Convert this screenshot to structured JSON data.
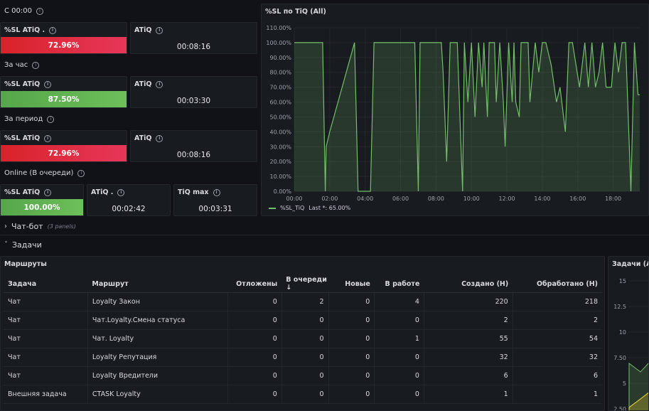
{
  "rows": {
    "since_midnight": "С 00:00",
    "per_hour": "За час",
    "per_period": "За период",
    "online": "Online (В очереди)"
  },
  "stat1": {
    "title": "%SL ATiQ .",
    "value": "72.96%",
    "atiq_title": "ATiQ",
    "atiq_value": "00:08:16"
  },
  "stat2": {
    "title": "%SL ATiQ",
    "value": "87.50%",
    "atiq_title": "ATiQ",
    "atiq_value": "00:03:30"
  },
  "stat3": {
    "title": "%SL ATiQ",
    "value": "72.96%",
    "atiq_title": "ATiQ",
    "atiq_value": "00:08:16"
  },
  "stat4": {
    "title": "%SL ATiQ",
    "value": "100.00%",
    "atiq_title": "ATiQ .",
    "atiq_value": "00:02:42",
    "tiqmax_title": "TiQ max",
    "tiqmax_value": "00:03:31"
  },
  "collapsed_row": {
    "title": "Чат-бот",
    "meta": "(3 panels)"
  },
  "tasks_row": {
    "title": "Задачи"
  },
  "chart_panel": {
    "title": "%SL по TiQ (All)",
    "legend": "%SL_TiQ",
    "legend_last": "Last *: 65.00%"
  },
  "chart_data": {
    "type": "area",
    "title": "%SL по TiQ (All)",
    "y_ticks": [
      "110.00%",
      "100.00%",
      "90.00%",
      "80.00%",
      "70.00%",
      "60.00%",
      "50.00%",
      "40.00%",
      "30.00%",
      "20.00%",
      "10.00%",
      "0.00%"
    ],
    "x_ticks": [
      "00:00",
      "02:00",
      "04:00",
      "06:00",
      "08:00",
      "10:00",
      "12:00",
      "14:00",
      "16:00",
      "18:00"
    ],
    "ylim": [
      0,
      110
    ],
    "xlim": [
      0,
      19.5
    ],
    "color": "#73bf69",
    "series": [
      {
        "name": "%SL_TiQ",
        "points": [
          [
            0,
            100
          ],
          [
            1.6,
            100
          ],
          [
            1.75,
            0
          ],
          [
            1.8,
            30
          ],
          [
            2.0,
            40
          ],
          [
            3.4,
            100
          ],
          [
            3.6,
            0
          ],
          [
            4.3,
            0
          ],
          [
            4.5,
            100
          ],
          [
            6.8,
            100
          ],
          [
            7.0,
            0
          ],
          [
            7.1,
            100
          ],
          [
            8.3,
            100
          ],
          [
            8.4,
            80
          ],
          [
            8.6,
            20
          ],
          [
            8.8,
            100
          ],
          [
            9.2,
            100
          ],
          [
            9.5,
            0
          ],
          [
            9.6,
            100
          ],
          [
            9.8,
            60
          ],
          [
            10.0,
            100
          ],
          [
            10.2,
            50
          ],
          [
            10.4,
            100
          ],
          [
            10.6,
            70
          ],
          [
            10.7,
            100
          ],
          [
            10.9,
            50
          ],
          [
            11.0,
            100
          ],
          [
            11.3,
            100
          ],
          [
            11.4,
            60
          ],
          [
            11.6,
            100
          ],
          [
            11.8,
            60
          ],
          [
            11.9,
            30
          ],
          [
            12.1,
            100
          ],
          [
            12.3,
            60
          ],
          [
            12.4,
            100
          ],
          [
            12.5,
            60
          ],
          [
            12.7,
            50
          ],
          [
            12.8,
            100
          ],
          [
            12.9,
            100
          ],
          [
            13.2,
            100
          ],
          [
            13.3,
            60
          ],
          [
            13.6,
            100
          ],
          [
            13.8,
            80
          ],
          [
            14.0,
            100
          ],
          [
            14.2,
            100
          ],
          [
            14.5,
            85
          ],
          [
            14.8,
            60
          ],
          [
            15.0,
            70
          ],
          [
            15.3,
            40
          ],
          [
            15.5,
            100
          ],
          [
            15.7,
            100
          ],
          [
            15.9,
            85
          ],
          [
            16.1,
            70
          ],
          [
            16.4,
            100
          ],
          [
            16.6,
            70
          ],
          [
            16.8,
            100
          ],
          [
            17.0,
            70
          ],
          [
            17.2,
            80
          ],
          [
            17.4,
            100
          ],
          [
            17.6,
            70
          ],
          [
            17.9,
            70
          ],
          [
            18.1,
            100
          ],
          [
            18.3,
            80
          ],
          [
            18.5,
            100
          ],
          [
            18.7,
            100
          ],
          [
            19.0,
            0
          ],
          [
            19.2,
            100
          ],
          [
            19.4,
            65
          ],
          [
            19.5,
            65
          ]
        ]
      }
    ]
  },
  "table_panel": {
    "title": "Маршруты"
  },
  "table": {
    "headers": [
      "Задача",
      "Маршрут",
      "Отложены",
      "В очереди",
      "Новые",
      "В работе",
      "Создано (Н)",
      "Обработано (Н)"
    ],
    "sort_indicator": "↓",
    "rows": [
      [
        "Чат",
        "Loyalty Закон",
        "0",
        "2",
        "0",
        "4",
        "220",
        "218"
      ],
      [
        "Чат",
        "Чат.Loyalty.Смена статуса",
        "0",
        "0",
        "0",
        "0",
        "2",
        "2"
      ],
      [
        "Чат",
        "Чат. Loyalty",
        "0",
        "0",
        "0",
        "1",
        "55",
        "54"
      ],
      [
        "Чат",
        "Loyalty Репутация",
        "0",
        "0",
        "0",
        "0",
        "32",
        "32"
      ],
      [
        "Чат",
        "Loyalty Вредители",
        "0",
        "0",
        "0",
        "0",
        "6",
        "6"
      ],
      [
        "Внешняя задача",
        "CTASK Loyalty",
        "0",
        "0",
        "0",
        "0",
        "1",
        "1"
      ]
    ]
  },
  "right_panel": {
    "title": "Задачи (All",
    "y_ticks": [
      "15",
      "12.5",
      "10",
      "7.50",
      "5",
      "2.50"
    ]
  }
}
